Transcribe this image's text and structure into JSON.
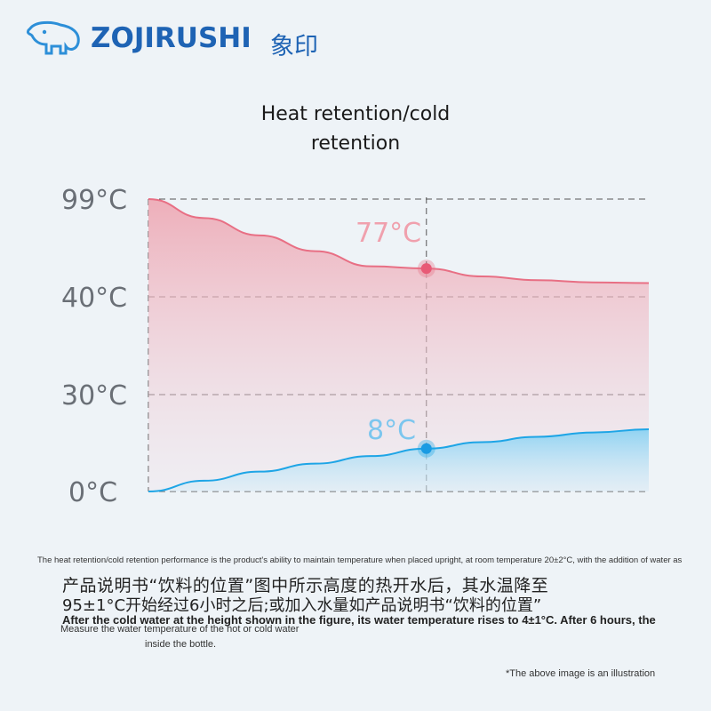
{
  "header": {
    "brand": "ZOJIRUSHI",
    "brand_cn": "象印",
    "logo_icon": "elephant-icon",
    "brand_color": "#1e63b4"
  },
  "title": {
    "line1": "Heat retention/cold",
    "line2": "retention"
  },
  "notes": {
    "line1": "The heat retention/cold retention performance is the product's ability to maintain temperature when placed upright, at room temperature 20±2°C, with the addition of water as",
    "line2": "产品说明书“饮料的位置”图中所示高度的热开水后，其水温降至",
    "line3": "95±1°C开始经过6小时之后;或加入水量如产品说明书“饮料的位置”",
    "line4": "After the cold water at the height shown in the figure, its water temperature rises to 4±1°C. After 6 hours, the",
    "line5": "Measure the water temperature of the hot or cold water",
    "line6": "inside the bottle.",
    "disclaimer": "*The above image is an illustration"
  },
  "chart_data": {
    "type": "area",
    "y_tick_labels": [
      "99°C",
      "40°C",
      "30°C",
      "0°C"
    ],
    "grid": true,
    "series": [
      {
        "color": "#e86f84",
        "marker_label": "77°C",
        "values": [
          99,
          93,
          87.5,
          82.5,
          77.7,
          77,
          74.5,
          73.3,
          72.6,
          72.4
        ],
        "x": [
          0,
          1,
          2,
          3,
          4,
          5,
          6,
          7,
          8,
          9
        ]
      },
      {
        "color": "#1ea5e6",
        "marker_label": "8°C",
        "values": [
          0,
          2,
          3.7,
          5.2,
          6.6,
          8,
          9.2,
          10.2,
          11,
          11.6
        ],
        "x": [
          0,
          1,
          2,
          3,
          4,
          5,
          6,
          7,
          8,
          9
        ]
      }
    ],
    "marker_x": 5
  }
}
